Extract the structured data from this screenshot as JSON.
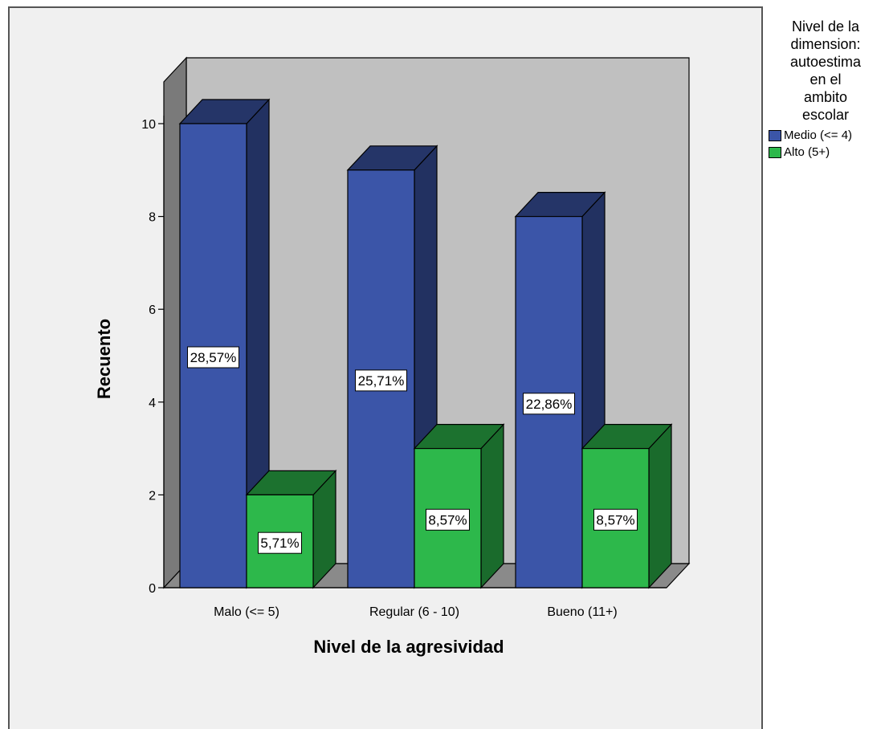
{
  "chart_data": {
    "type": "bar",
    "style": "3d-clustered",
    "xlabel": "Nivel de la agresividad",
    "ylabel": "Recuento",
    "categories": [
      "Malo (<= 5)",
      "Regular (6 - 10)",
      "Bueno (11+)"
    ],
    "ylim": [
      0,
      10
    ],
    "yticks": [
      0,
      2,
      4,
      6,
      8,
      10
    ],
    "grid": false,
    "legend_position": "right",
    "legend_title": "Nivel de la dimension: autoestima en el ambito escolar",
    "series": [
      {
        "name": "Medio (<= 4)",
        "color": "#3b55a8",
        "values": [
          10,
          9,
          8
        ],
        "labels": [
          "28,57%",
          "25,71%",
          "22,86%"
        ]
      },
      {
        "name": "Alto (5+)",
        "color": "#2db84b",
        "values": [
          2,
          3,
          3
        ],
        "labels": [
          "5,71%",
          "8,57%",
          "8,57%"
        ]
      }
    ]
  },
  "legend": {
    "title_lines": [
      "Nivel de la",
      "dimension:",
      "autoestima",
      "en el",
      "ambito",
      "escolar"
    ]
  }
}
